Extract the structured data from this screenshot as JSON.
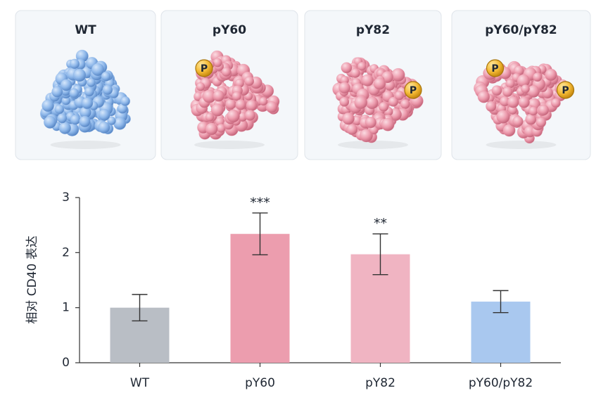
{
  "panels": [
    {
      "label": "WT",
      "color": "#8fb8ea",
      "badges": []
    },
    {
      "label": "pY60",
      "color": "#ec9aac",
      "badges": [
        "P"
      ]
    },
    {
      "label": "pY82",
      "color": "#ec9aac",
      "badges": [
        "P"
      ]
    },
    {
      "label": "pY60/pY82",
      "color": "#ec9aac",
      "badges": [
        "P",
        "P"
      ]
    }
  ],
  "chart_data": {
    "type": "bar",
    "y_label": "相对 CD40 表达",
    "categories": [
      "WT",
      "pY60",
      "pY82",
      "pY60/pY82"
    ],
    "values": [
      1.0,
      2.34,
      1.97,
      1.11
    ],
    "errors": [
      0.24,
      0.38,
      0.37,
      0.2
    ],
    "significance": [
      null,
      "***",
      "**",
      null
    ],
    "colors": [
      "#b9bec5",
      "#ec9dae",
      "#f0b4c2",
      "#a9c8ef"
    ],
    "ylim": [
      0,
      3
    ],
    "yticks": [
      0,
      1,
      2,
      3
    ],
    "grid": false
  }
}
